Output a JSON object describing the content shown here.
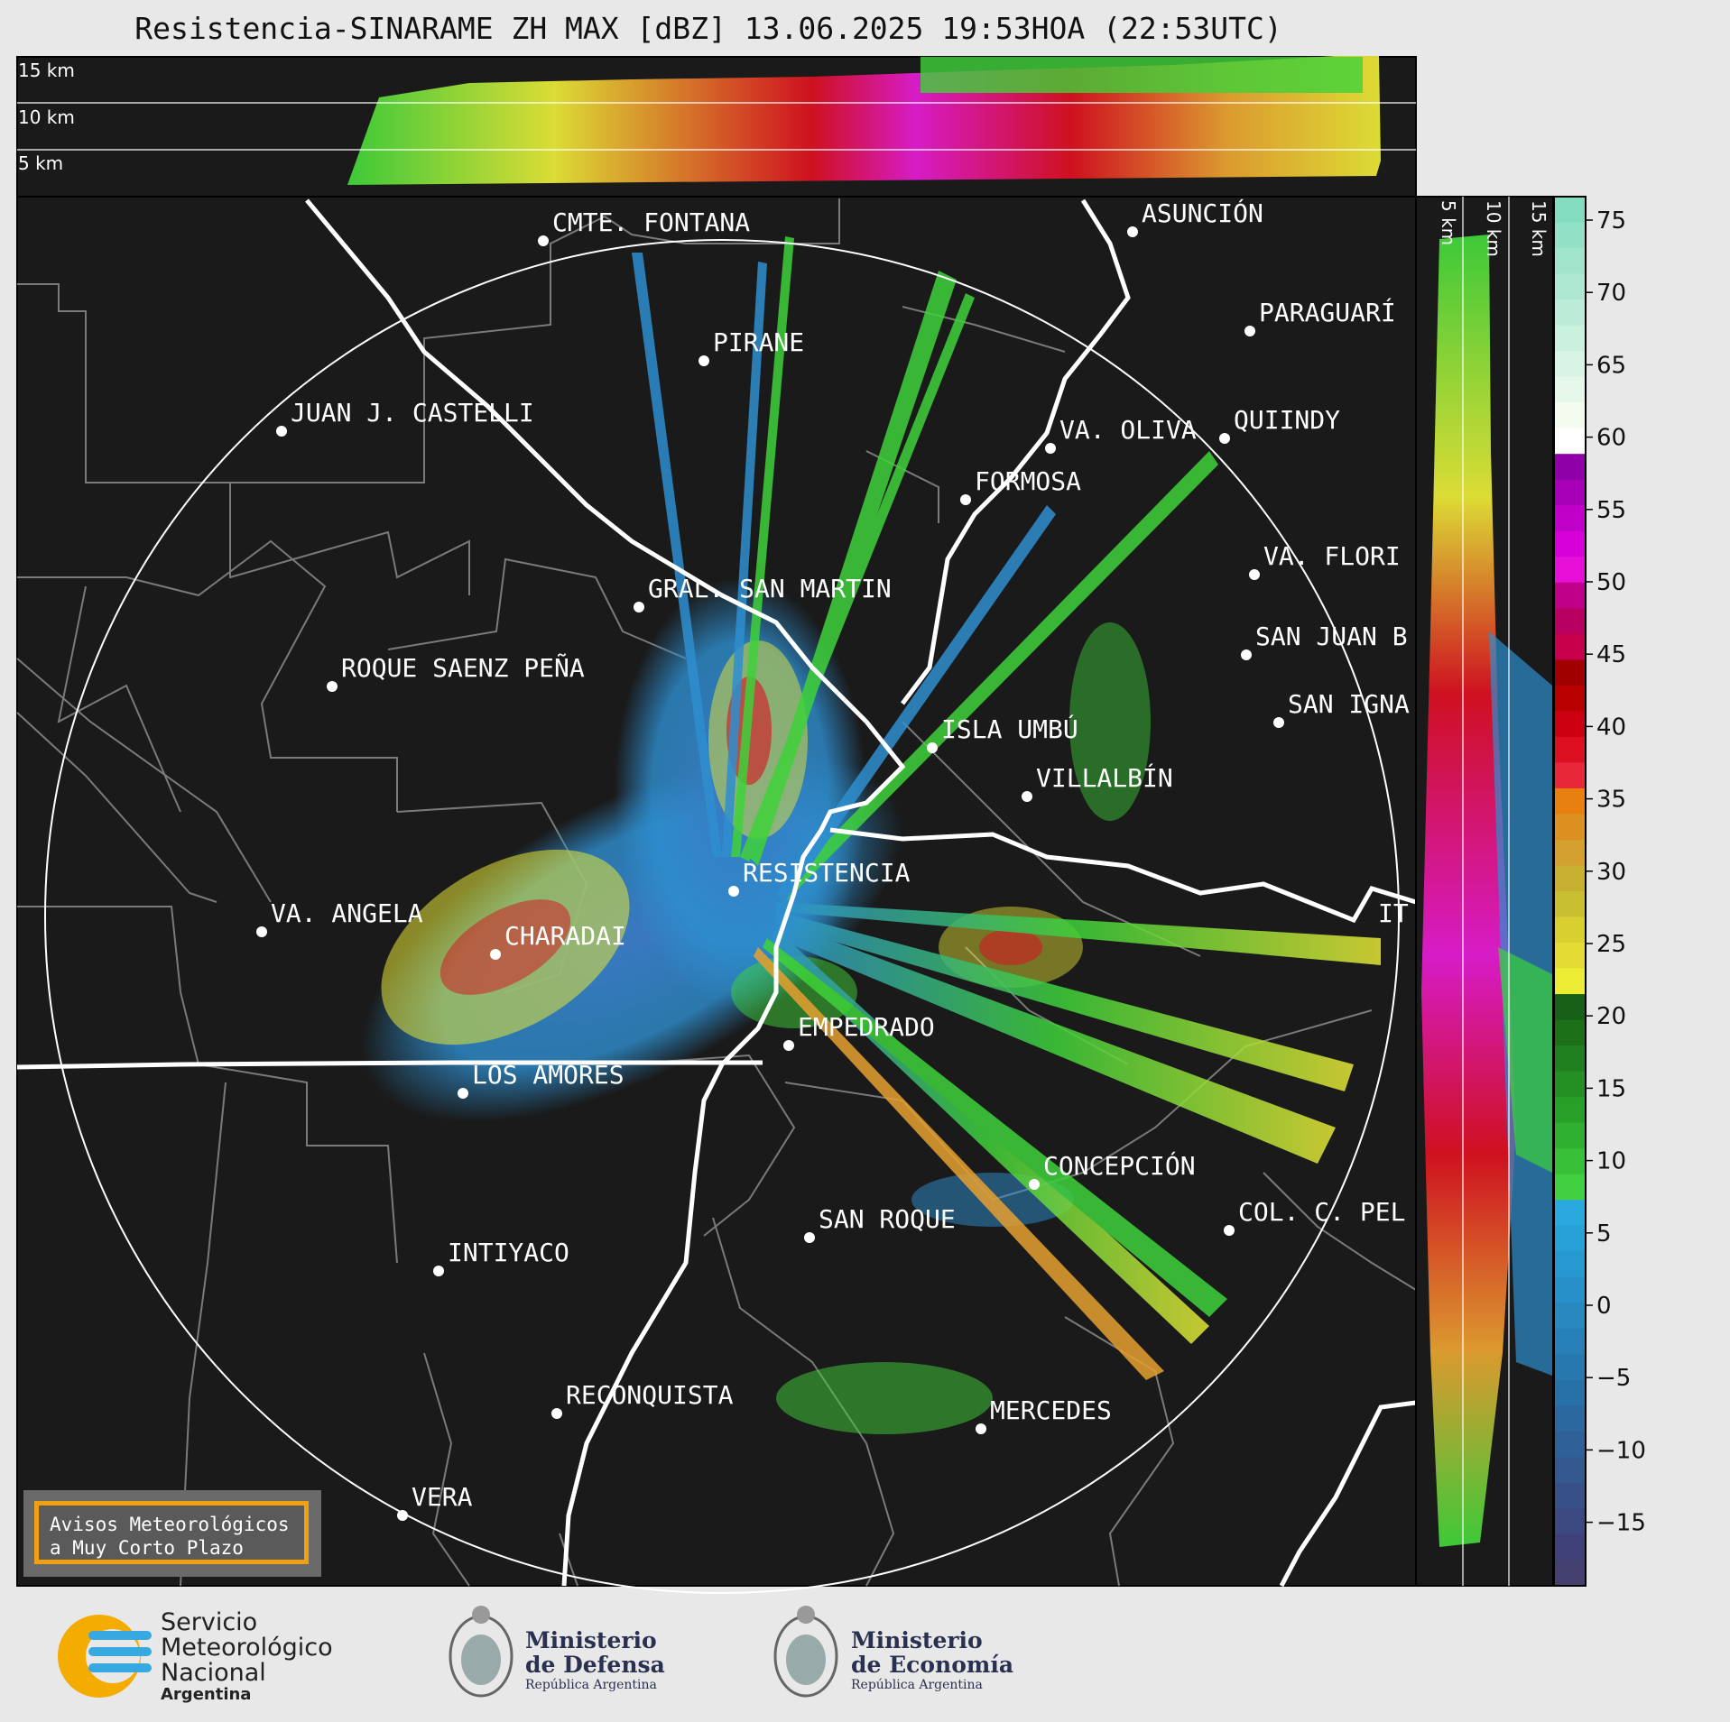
{
  "title": "Resistencia-SINARAME ZH MAX [dBZ] 13.06.2025 19:53HOA (22:53UTC)",
  "top_profile": {
    "km_labels": [
      "15 km",
      "10 km",
      "5 km"
    ]
  },
  "side_profile": {
    "km_labels": [
      "5 km",
      "10 km",
      "15 km"
    ]
  },
  "colorbar": {
    "ticks": [
      "75",
      "70",
      "65",
      "60",
      "55",
      "50",
      "45",
      "40",
      "35",
      "30",
      "25",
      "20",
      "15",
      "10",
      "5",
      "0",
      "−5",
      "−10",
      "−15"
    ]
  },
  "cities": [
    {
      "name": "CMTE. FONTANA"
    },
    {
      "name": "ASUNCIÓN"
    },
    {
      "name": "PARAGUARÍ"
    },
    {
      "name": "PIRANE"
    },
    {
      "name": "JUAN J. CASTELLI"
    },
    {
      "name": "VA. OLIVA"
    },
    {
      "name": "QUIINDY"
    },
    {
      "name": "FORMOSA"
    },
    {
      "name": "VA. FLORI"
    },
    {
      "name": "GRAL. SAN MARTIN"
    },
    {
      "name": "SAN JUAN B"
    },
    {
      "name": "ROQUE SAENZ PEÑA"
    },
    {
      "name": "SAN IGNA"
    },
    {
      "name": "ISLA UMBÚ"
    },
    {
      "name": "VILLALBÍN"
    },
    {
      "name": "RESISTENCIA"
    },
    {
      "name": "VA. ANGELA"
    },
    {
      "name": "CHARADAI"
    },
    {
      "name": "IT"
    },
    {
      "name": "EMPEDRADO"
    },
    {
      "name": "LOS AMORES"
    },
    {
      "name": "CONCEPCIÓN"
    },
    {
      "name": "SAN ROQUE"
    },
    {
      "name": "COL. C. PEL"
    },
    {
      "name": "INTIYACO"
    },
    {
      "name": "RECONQUISTA"
    },
    {
      "name": "MERCEDES"
    },
    {
      "name": "VERA"
    }
  ],
  "warning_box": {
    "line1": "Avisos Meteorológicos",
    "line2": "a Muy Corto Plazo"
  },
  "logos": {
    "smn": {
      "line1": "Servicio",
      "line2": "Meteorológico",
      "line3": "Nacional",
      "line4": "Argentina"
    },
    "defensa": {
      "line1": "Ministerio",
      "line2": "de Defensa",
      "line3": "República Argentina"
    },
    "economia": {
      "line1": "Ministerio",
      "line2": "de Economía",
      "line3": "República Argentina"
    }
  }
}
